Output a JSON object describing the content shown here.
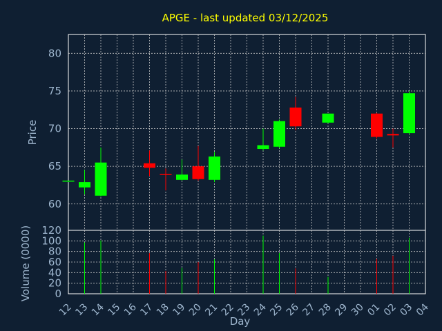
{
  "chart_data": [
    {
      "type": "candlestick",
      "title": "APGE - last updated 03/12/2025",
      "ylabel": "Price",
      "ylim": [
        56.5,
        82.5
      ],
      "yticks": [
        60,
        65,
        70,
        75,
        80
      ],
      "grid": true,
      "colors": {
        "up": "#00ff00",
        "down": "#ff0000",
        "grid": "#c8c8c8",
        "background": "#0f1f32"
      },
      "x": [
        "12",
        "13",
        "14",
        "15",
        "16",
        "17",
        "18",
        "19",
        "20",
        "21",
        "22",
        "23",
        "24",
        "25",
        "26",
        "27",
        "28",
        "29",
        "30",
        "01",
        "02",
        "03",
        "04"
      ],
      "candles": [
        {
          "x": "12",
          "open": 63.0,
          "high": 63.1,
          "low": 62.9,
          "close": 63.1
        },
        {
          "x": "13",
          "open": 62.2,
          "high": 64.5,
          "low": 61.3,
          "close": 62.9
        },
        {
          "x": "14",
          "open": 61.1,
          "high": 67.5,
          "low": 61.0,
          "close": 65.5
        },
        {
          "x": "17",
          "open": 65.4,
          "high": 67.1,
          "low": 63.7,
          "close": 64.8
        },
        {
          "x": "18",
          "open": 64.0,
          "high": 64.7,
          "low": 61.8,
          "close": 63.9
        },
        {
          "x": "19",
          "open": 63.2,
          "high": 65.9,
          "low": 63.1,
          "close": 63.9
        },
        {
          "x": "20",
          "open": 65.0,
          "high": 67.7,
          "low": 63.1,
          "close": 63.3
        },
        {
          "x": "21",
          "open": 63.2,
          "high": 66.9,
          "low": 62.9,
          "close": 66.3
        },
        {
          "x": "24",
          "open": 67.3,
          "high": 70.0,
          "low": 67.1,
          "close": 67.8
        },
        {
          "x": "25",
          "open": 67.6,
          "high": 71.2,
          "low": 67.4,
          "close": 71.0
        },
        {
          "x": "26",
          "open": 72.8,
          "high": 74.2,
          "low": 69.8,
          "close": 70.3
        },
        {
          "x": "28",
          "open": 70.8,
          "high": 72.0,
          "low": 70.7,
          "close": 72.0
        },
        {
          "x": "01",
          "open": 72.0,
          "high": 72.1,
          "low": 68.7,
          "close": 68.9
        },
        {
          "x": "02",
          "open": 69.3,
          "high": 70.0,
          "low": 67.5,
          "close": 69.1
        },
        {
          "x": "03",
          "open": 69.4,
          "high": 75.0,
          "low": 69.2,
          "close": 74.7
        }
      ]
    },
    {
      "type": "bar",
      "ylabel": "Volume (0000)",
      "xlabel": "Day",
      "ylim": [
        0,
        120
      ],
      "yticks": [
        0,
        20,
        40,
        60,
        80,
        100,
        120
      ],
      "grid": true,
      "categories": [
        "12",
        "13",
        "14",
        "15",
        "16",
        "17",
        "18",
        "19",
        "20",
        "21",
        "22",
        "23",
        "24",
        "25",
        "26",
        "27",
        "28",
        "29",
        "30",
        "01",
        "02",
        "03",
        "04"
      ],
      "values": [
        {
          "x": "13",
          "value": 97,
          "color": "up"
        },
        {
          "x": "14",
          "value": 101,
          "color": "up"
        },
        {
          "x": "17",
          "value": 77,
          "color": "down"
        },
        {
          "x": "18",
          "value": 43,
          "color": "down"
        },
        {
          "x": "19",
          "value": 49,
          "color": "up"
        },
        {
          "x": "20",
          "value": 60,
          "color": "down"
        },
        {
          "x": "21",
          "value": 65,
          "color": "up"
        },
        {
          "x": "24",
          "value": 110,
          "color": "up"
        },
        {
          "x": "25",
          "value": 77,
          "color": "up"
        },
        {
          "x": "26",
          "value": 48,
          "color": "down"
        },
        {
          "x": "28",
          "value": 32,
          "color": "up"
        },
        {
          "x": "01",
          "value": 66,
          "color": "down"
        },
        {
          "x": "02",
          "value": 72,
          "color": "down"
        },
        {
          "x": "03",
          "value": 106,
          "color": "up"
        }
      ]
    }
  ]
}
